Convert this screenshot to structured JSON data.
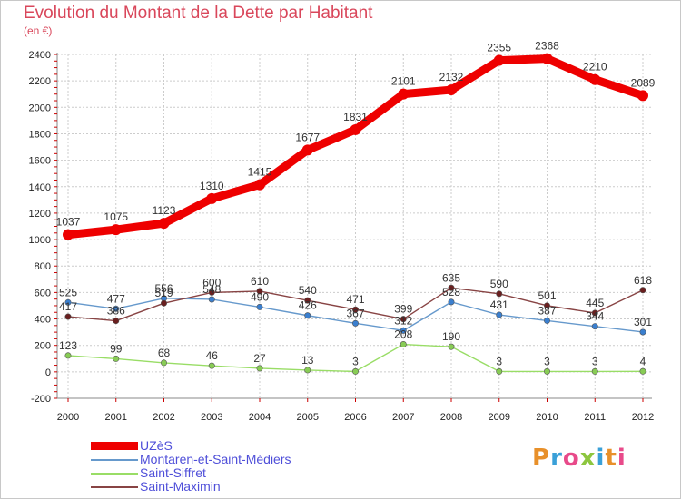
{
  "title": "Evolution du Montant de la Dette par Habitant",
  "subtitle": "(en €)",
  "logo": "Proxiti",
  "colors": {
    "title": "#d9475b",
    "grid": "#cccccc",
    "axis": "#888888",
    "tick_red": "#cc0000"
  },
  "chart_data": {
    "type": "line",
    "title": "Evolution du Montant de la Dette par Habitant",
    "subtitle": "(en €)",
    "xlabel": "",
    "ylabel": "",
    "categories": [
      "2000",
      "2001",
      "2002",
      "2003",
      "2004",
      "2005",
      "2006",
      "2007",
      "2008",
      "2009",
      "2010",
      "2011",
      "2012"
    ],
    "ylim": [
      -200,
      2400
    ],
    "yticks": [
      -200,
      0,
      200,
      400,
      600,
      800,
      1000,
      1200,
      1400,
      1600,
      1800,
      2000,
      2200,
      2400
    ],
    "grid": true,
    "legend_position": "bottom-left",
    "series": [
      {
        "name": "UZèS",
        "color": "#ee0000",
        "values": [
          1037,
          1075,
          1123,
          1310,
          1415,
          1677,
          1831,
          2101,
          2132,
          2355,
          2368,
          2210,
          2089
        ],
        "labels": [
          "1037",
          "1075",
          "1123",
          "1310",
          "1415",
          "1677",
          "1831",
          "2101",
          "2132",
          "2355",
          "2368",
          "2210",
          "2089"
        ]
      },
      {
        "name": "Montaren-et-Saint-Médiers",
        "color": "#6699cc",
        "marker": "#3a7fcf",
        "values": [
          525,
          477,
          556,
          548,
          490,
          426,
          367,
          312,
          528,
          431,
          387,
          344,
          301
        ],
        "labels": [
          "525",
          "477",
          "556",
          "548",
          "490",
          "426",
          "367",
          "312",
          "528",
          "431",
          "387",
          "344",
          "301"
        ]
      },
      {
        "name": "Saint-Siffret",
        "color": "#99dd66",
        "marker": "#88cc55",
        "values": [
          123,
          99,
          68,
          46,
          27,
          13,
          3,
          208,
          190,
          3,
          3,
          3,
          4
        ],
        "labels": [
          "123",
          "99",
          "68",
          "46",
          "27",
          "13",
          "3",
          "208",
          "190",
          "3",
          "3",
          "3",
          "4"
        ]
      },
      {
        "name": "Saint-Maximin",
        "color": "#884444",
        "marker": "#6a1f1f",
        "values": [
          417,
          386,
          519,
          600,
          610,
          540,
          471,
          399,
          635,
          590,
          501,
          445,
          618
        ],
        "labels": [
          "417",
          "386",
          "519",
          "600",
          "610",
          "540",
          "471",
          "399",
          "635",
          "590",
          "501",
          "445",
          "618"
        ]
      }
    ]
  }
}
